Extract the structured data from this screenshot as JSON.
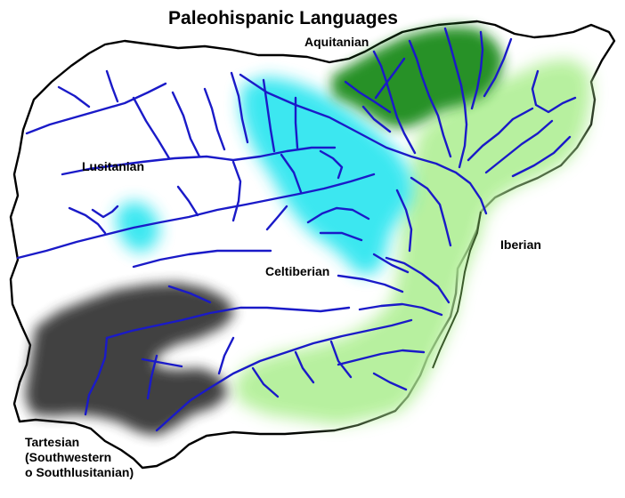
{
  "title": "Paleohispanic Languages",
  "colors": {
    "aquitanian": "#1f8c1f",
    "celtiberian": "#33e6f0",
    "iberian": "#b4f09a",
    "tartesian": "#3a3a3a",
    "river": "#1a1ac8",
    "coastline": "#000000"
  },
  "languages": [
    {
      "name": "aquitanian",
      "label": "Aquitanian"
    },
    {
      "name": "lusitanian",
      "label": "Lusitanian"
    },
    {
      "name": "celtiberian",
      "label": "Celtiberian"
    },
    {
      "name": "iberian",
      "label": "Iberian"
    },
    {
      "name": "tartesian",
      "label_lines": [
        "Tartesian",
        "(Southwestern",
        "o Southlusitanian)"
      ]
    }
  ]
}
